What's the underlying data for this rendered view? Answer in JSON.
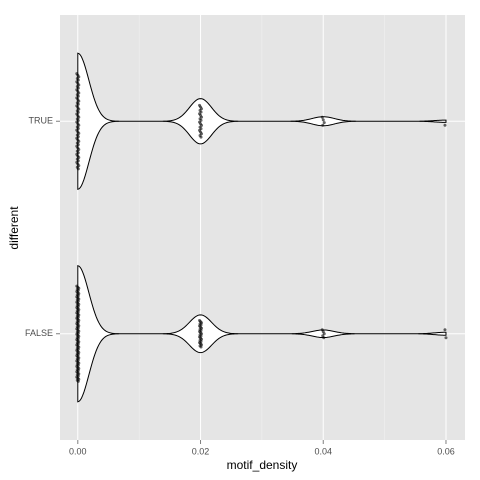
{
  "chart_data": {
    "type": "violin",
    "x_label": "motif_density",
    "y_label": "different",
    "groups": [
      {
        "name": "TRUE",
        "values": [
          0,
          0.02,
          0.04,
          0.06
        ],
        "counts": [
          60,
          20,
          4,
          1
        ]
      },
      {
        "name": "FALSE",
        "values": [
          0,
          0.02,
          0.04,
          0.06
        ],
        "counts": [
          90,
          25,
          5,
          2
        ]
      }
    ],
    "xlim": [
      -0.0029,
      0.0631
    ],
    "xticks": [
      {
        "value": 0,
        "label": "0.00"
      },
      {
        "value": 0.02,
        "label": "0.02"
      },
      {
        "value": 0.04,
        "label": "0.04"
      },
      {
        "value": 0.06,
        "label": "0.06"
      }
    ],
    "xminor": [
      0.01,
      0.03,
      0.05
    ],
    "grid": true,
    "panel_color": "#e5e5e5",
    "color": "#000000"
  }
}
